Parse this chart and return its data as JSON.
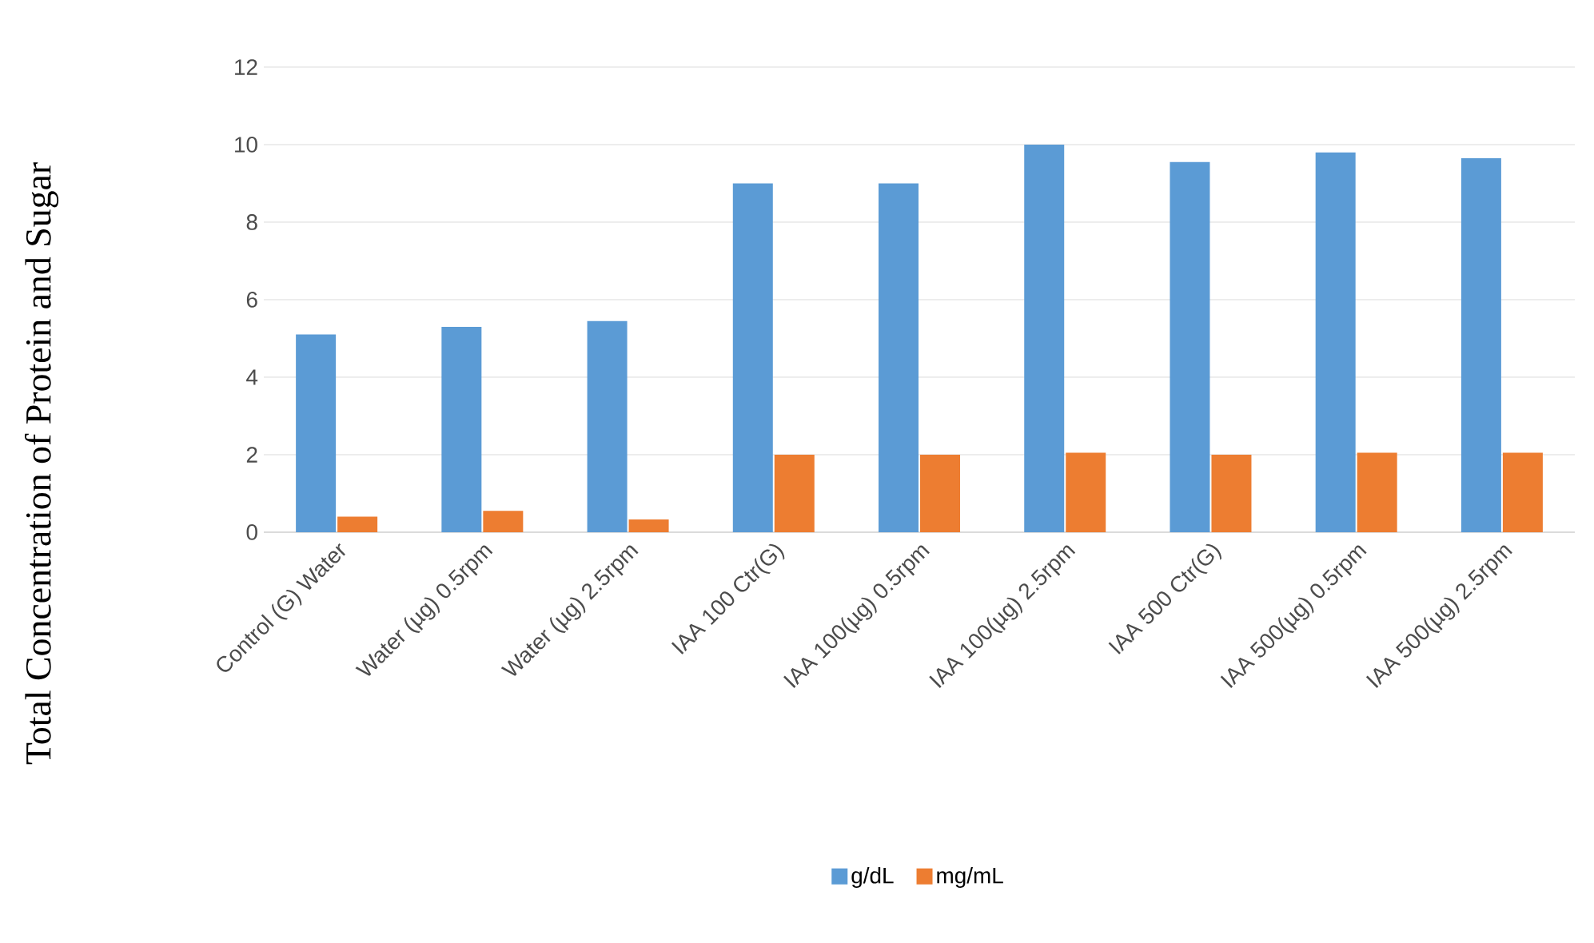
{
  "chart_data": {
    "type": "bar",
    "ylabel": "Total Concentration of Protein and Sugar",
    "categories": [
      "Control (G) Water",
      "Water (µg) 0.5rpm",
      "Water (µg) 2.5rpm",
      "IAA 100 Ctr(G)",
      "IAA 100(µg) 0.5rpm",
      "IAA 100(µg) 2.5rpm",
      "IAA 500 Ctr(G)",
      "IAA 500(µg) 0.5rpm",
      "IAA 500(µg) 2.5rpm"
    ],
    "series": [
      {
        "name": "g/dL",
        "color": "#5b9bd5",
        "values": [
          5.1,
          5.3,
          5.45,
          9.0,
          9.0,
          10.0,
          9.55,
          9.8,
          9.65
        ]
      },
      {
        "name": "mg/mL",
        "color": "#ed7d31",
        "values": [
          0.4,
          0.55,
          0.33,
          2.0,
          2.0,
          2.05,
          2.0,
          2.05,
          2.05
        ]
      }
    ],
    "ylim": [
      0,
      12
    ],
    "yticks": [
      0,
      2,
      4,
      6,
      8,
      10,
      12
    ],
    "grid": "y",
    "legend": "bottom"
  }
}
